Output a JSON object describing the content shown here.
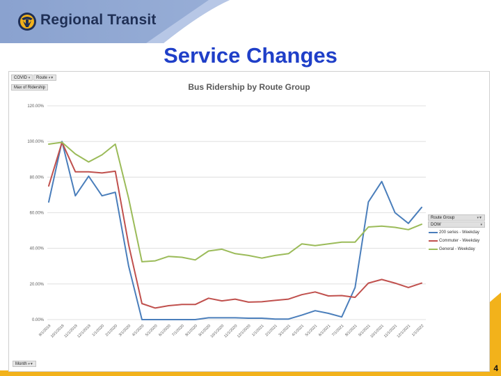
{
  "header": {
    "brand": "Regional Transit"
  },
  "slide": {
    "title": "Service Changes",
    "page_number": "4"
  },
  "colors": {
    "header_band": "#8aa2cf",
    "gold": "#f2b21b",
    "title": "#1f3fc8",
    "series_200": "#4a7ebb",
    "series_commuter": "#c0504d",
    "series_general": "#9bbb59"
  },
  "pivot": {
    "filter_covid": "COVID",
    "filter_route": "Route",
    "value_field": "Max of Ridership",
    "axis_field": "Month",
    "legend_route_group": "Route Group",
    "legend_dow": "DOW"
  },
  "chart_data": {
    "type": "line",
    "title": "Bus Ridership by Route Group",
    "xlabel": "",
    "ylabel": "",
    "ylim": [
      0,
      120
    ],
    "y_ticks": [
      "0.00%",
      "20.00%",
      "40.00%",
      "60.00%",
      "80.00%",
      "100.00%",
      "120.00%"
    ],
    "grid": true,
    "legend_position": "right",
    "categories": [
      "9/1/2019",
      "10/1/2019",
      "11/1/2019",
      "12/1/2019",
      "1/1/2020",
      "2/1/2020",
      "3/1/2020",
      "4/1/2020",
      "5/1/2020",
      "6/1/2020",
      "7/1/2020",
      "8/1/2020",
      "9/1/2020",
      "10/1/2020",
      "11/1/2020",
      "12/1/2020",
      "1/1/2021",
      "2/1/2021",
      "3/1/2021",
      "4/1/2021",
      "5/1/2021",
      "6/1/2021",
      "7/1/2021",
      "8/1/2021",
      "9/1/2021",
      "10/1/2021",
      "11/1/2021",
      "12/1/2021",
      "1/1/2022"
    ],
    "x_tick_labels": [
      "9/1/2019",
      "10/1/2019",
      "11/1/2019",
      "12/1/2019",
      "1/1/2020",
      "2/1/2020",
      "3/1/2020",
      "4/1/2020",
      "5/1/2020",
      "6/1/2020",
      "7/1/2020",
      "8/1/2020",
      "9/1/2020",
      "10/1/2020",
      "11/1/2020",
      "12/1/2020",
      "1/1/2021",
      "2/1/2021",
      "3/1/2021",
      "4/1/2021",
      "5/1/2021",
      "6/1/2021",
      "7/1/2021",
      "8/1/2021",
      "9/1/2021",
      "10/1/2021",
      "11/1/2021",
      "12/1/2021",
      "1/1/2022"
    ],
    "series": [
      {
        "name": "200 series - Weekday",
        "color": "#4a7ebb",
        "values": [
          66,
          100,
          69.5,
          80.5,
          69.5,
          71.5,
          30,
          0,
          0,
          0,
          0,
          0,
          1,
          1,
          1,
          0.8,
          0.8,
          0.3,
          0.3,
          2.5,
          5,
          3.5,
          1.5,
          18,
          66,
          77.5,
          60,
          54,
          63
        ]
      },
      {
        "name": "Commuter - Weekday",
        "color": "#c0504d",
        "values": [
          75,
          99.5,
          83,
          83,
          82.3,
          83.3,
          42,
          9,
          6.5,
          7.8,
          8.5,
          8.5,
          12,
          10.5,
          11.5,
          9.8,
          10,
          10.8,
          11.5,
          14,
          15.5,
          13.3,
          13.5,
          12.5,
          20.5,
          22.5,
          20.5,
          18,
          20.5
        ]
      },
      {
        "name": "General - Weekday",
        "color": "#9bbb59",
        "values": [
          98.5,
          99.5,
          93,
          88.5,
          92.5,
          98.5,
          68,
          32.5,
          33,
          35.5,
          35,
          33.5,
          38.5,
          39.5,
          37,
          36,
          34.5,
          36,
          37,
          42.5,
          41.5,
          42.5,
          43.5,
          43.5,
          52,
          52.5,
          51.8,
          50.5,
          53.5
        ]
      }
    ]
  }
}
